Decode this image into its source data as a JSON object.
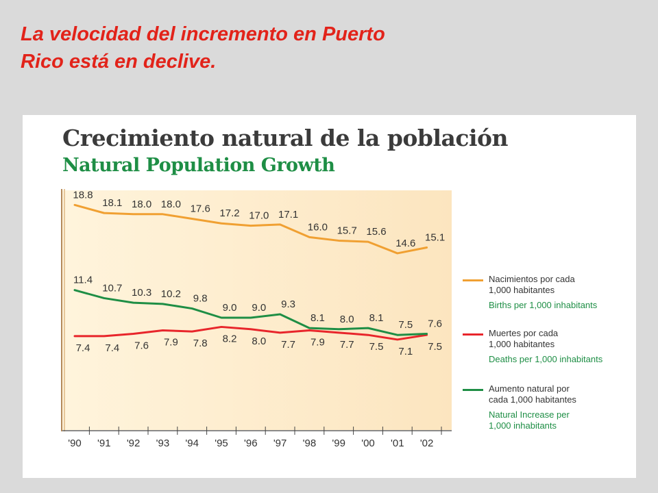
{
  "slide": {
    "title_lines": [
      "La velocidad del incremento en Puerto",
      "Rico está en declive."
    ]
  },
  "chart_data": {
    "type": "line",
    "title": "Crecimiento natural de la población",
    "subtitle": "Natural Population Growth",
    "categories": [
      "'90",
      "'91",
      "'92",
      "'93",
      "'94",
      "'95",
      "'96",
      "'97",
      "'98",
      "'99",
      "'00",
      "'01",
      "'02"
    ],
    "series": [
      {
        "name": "Nacimientos por cada\n1,000 habitantes",
        "name_en": "Births per 1,000 inhabitants",
        "color": "#f0a032",
        "values": [
          18.8,
          18.1,
          18.0,
          18.0,
          17.6,
          17.2,
          17.0,
          17.1,
          16.0,
          15.7,
          15.6,
          14.6,
          15.1
        ]
      },
      {
        "name": "Muertes por cada\n1,000 habitantes",
        "name_en": "Deaths per 1,000 inhabitants",
        "color": "#e8252b",
        "values": [
          7.4,
          7.4,
          7.6,
          7.9,
          7.8,
          8.2,
          8.0,
          7.7,
          7.9,
          7.7,
          7.5,
          7.1,
          7.5
        ]
      },
      {
        "name": "Aumento natural por\ncada 1,000 habitantes",
        "name_en": "Natural Increase per\n1,000 inhabitants",
        "color": "#1e8e45",
        "values": [
          11.4,
          10.7,
          10.3,
          10.2,
          9.8,
          9.0,
          9.0,
          9.3,
          8.1,
          8.0,
          8.1,
          7.5,
          7.6
        ]
      }
    ],
    "plot_background": "#fce5bf",
    "legend_position": "right",
    "grid": false
  }
}
